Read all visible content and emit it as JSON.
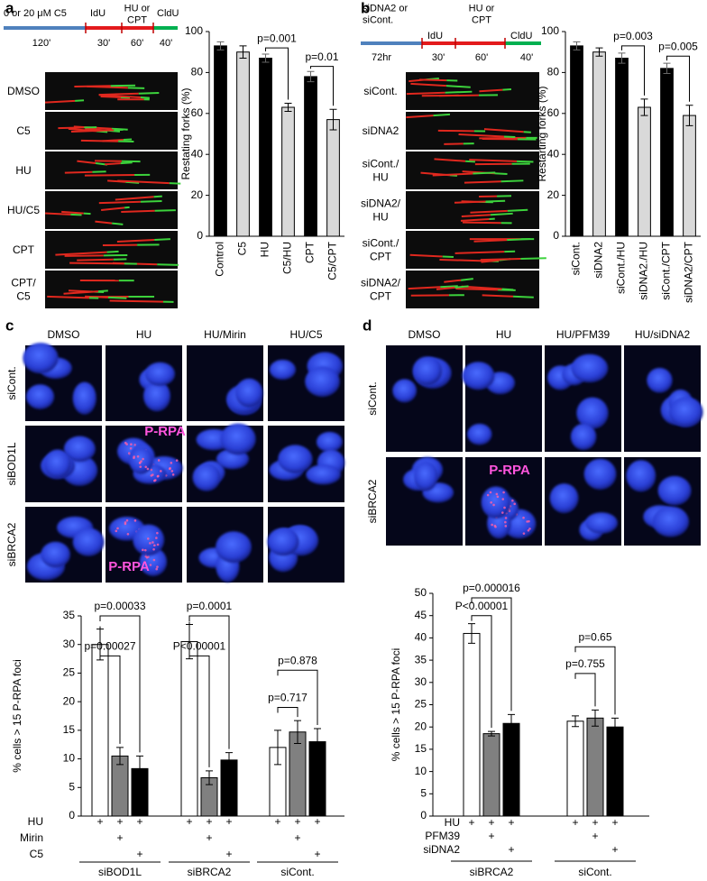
{
  "panel_labels": [
    "a",
    "b",
    "c",
    "d"
  ],
  "panel_a": {
    "timeline": {
      "segments": [
        "0 or 20 μM C5",
        "IdU",
        [
          "HU or",
          "CPT"
        ],
        "CldU"
      ],
      "durations": [
        "120'",
        "30'",
        "60'",
        "40'"
      ]
    },
    "rows": [
      "DMSO",
      "C5",
      "HU",
      "HU/C5",
      "CPT",
      [
        "CPT/",
        "C5"
      ]
    ]
  },
  "panel_b": {
    "timeline": {
      "segments": [
        [
          "siDNA2 or",
          "siCont."
        ],
        "IdU",
        [
          "HU or",
          "CPT"
        ],
        "CldU"
      ],
      "durations": [
        "72hr",
        "30'",
        "60'",
        "40'"
      ]
    },
    "rows": [
      "siCont.",
      "siDNA2",
      [
        "siCont./",
        "HU"
      ],
      [
        "siDNA2/",
        "HU"
      ],
      [
        "siCont./",
        "CPT"
      ],
      [
        "siDNA2/",
        "CPT"
      ]
    ]
  },
  "panel_c": {
    "columns": [
      "DMSO",
      "HU",
      "HU/Mirin",
      "HU/C5"
    ],
    "rows": [
      "siCont.",
      "siBOD1L",
      "siBRCA2"
    ],
    "overlays": [
      "P-RPA",
      "P-RPA"
    ]
  },
  "panel_d": {
    "columns": [
      "DMSO",
      "HU",
      "HU/PFM39",
      "HU/siDNA2"
    ],
    "rows": [
      "siCont.",
      "siBRCA2"
    ],
    "overlays": [
      "P-RPA"
    ]
  },
  "chart_data": [
    {
      "type": "bar",
      "y_label": "Restating forks (%)",
      "categories": [
        "Control",
        "C5",
        "HU",
        "C5/HU",
        "CPT",
        "C5/CPT"
      ],
      "values": [
        93,
        90,
        87,
        63,
        78,
        57
      ],
      "errors": [
        2,
        3,
        2,
        2,
        2.5,
        5
      ],
      "colors": [
        "#000000",
        "#d9d9d9",
        "#000000",
        "#d9d9d9",
        "#000000",
        "#d9d9d9"
      ],
      "ylim": [
        0,
        100
      ],
      "yticks": [
        0,
        20,
        40,
        60,
        80,
        100
      ],
      "annotations": [
        "p=0.001",
        "p=0.01"
      ]
    },
    {
      "type": "bar",
      "y_label": "Restarting forks (%)",
      "categories": [
        "siCont.",
        "siDNA2",
        "siCont./HU",
        "siDNA2./HU",
        "siCont./CPT",
        "siDNA2/CPT"
      ],
      "values": [
        93,
        90,
        87,
        63,
        82,
        59
      ],
      "errors": [
        2,
        2,
        2.5,
        4,
        2.5,
        5
      ],
      "colors": [
        "#000000",
        "#d9d9d9",
        "#000000",
        "#d9d9d9",
        "#000000",
        "#d9d9d9"
      ],
      "ylim": [
        0,
        100
      ],
      "yticks": [
        0,
        20,
        40,
        60,
        80,
        100
      ],
      "annotations": [
        "p=0.003",
        "p=0.005"
      ]
    },
    {
      "type": "grouped-bar",
      "y_label": "% cells > 15 P-RPA foci",
      "categories": [
        "siBOD1L",
        "siBRCA2",
        "siCont."
      ],
      "series": [
        {
          "color": "#ffffff",
          "values": [
            30,
            30.5,
            12
          ],
          "errors": [
            2.7,
            3,
            3
          ]
        },
        {
          "color": "#808080",
          "values": [
            10.5,
            6.7,
            14.7
          ],
          "errors": [
            1.5,
            1.2,
            2
          ]
        },
        {
          "color": "#000000",
          "values": [
            8.3,
            9.8,
            13
          ],
          "errors": [
            2.2,
            1.3,
            2.3
          ]
        }
      ],
      "ylim": [
        0,
        35
      ],
      "yticks": [
        0,
        5,
        10,
        15,
        20,
        25,
        30,
        35
      ],
      "treatments": [
        {
          "label": "HU",
          "signs": [
            "+",
            "+",
            "+",
            "+",
            "+",
            "+",
            "+",
            "+",
            "+"
          ]
        },
        {
          "label": "Mirin",
          "signs": [
            null,
            "+",
            null,
            null,
            "+",
            null,
            null,
            "+",
            null
          ]
        },
        {
          "label": "C5",
          "signs": [
            null,
            null,
            "+",
            null,
            null,
            "+",
            null,
            null,
            "+"
          ]
        }
      ],
      "annotations": [
        "p=0.00027",
        "p=0.00033",
        "P<0.00001",
        "p=0.0001",
        "p=0.717",
        "p=0.878"
      ]
    },
    {
      "type": "grouped-bar",
      "y_label": "% cells > 15 P-RPA foci",
      "categories": [
        "siBRCA2",
        "siCont."
      ],
      "series": [
        {
          "color": "#ffffff",
          "values": [
            41,
            21.3
          ],
          "errors": [
            2.2,
            1.2
          ]
        },
        {
          "color": "#808080",
          "values": [
            18.5,
            22
          ],
          "errors": [
            0.5,
            1.8
          ]
        },
        {
          "color": "#000000",
          "values": [
            20.8,
            20
          ],
          "errors": [
            2,
            2
          ]
        }
      ],
      "ylim": [
        0,
        50
      ],
      "yticks": [
        0,
        5,
        10,
        15,
        20,
        25,
        30,
        35,
        40,
        45,
        50
      ],
      "treatments": [
        {
          "label": "HU",
          "signs": [
            "+",
            "+",
            "+",
            "+",
            "+",
            "+"
          ]
        },
        {
          "label": "PFM39",
          "signs": [
            null,
            "+",
            null,
            null,
            "+",
            null
          ]
        },
        {
          "label": "siDNA2",
          "signs": [
            null,
            null,
            "+",
            null,
            null,
            "+"
          ]
        }
      ],
      "annotations": [
        "P<0.00001",
        "p=0.000016",
        "p=0.755",
        "p=0.65"
      ]
    }
  ]
}
